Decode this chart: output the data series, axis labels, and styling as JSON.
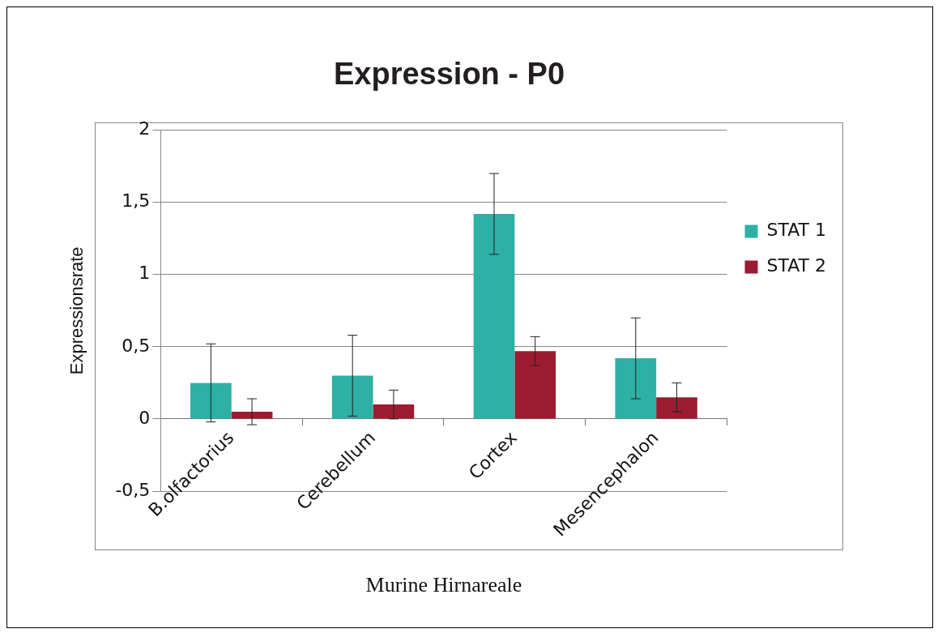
{
  "chart_data": {
    "type": "bar",
    "title": "Expression - P0",
    "xlabel": "Murine Hirnareale",
    "ylabel": "Expressionsrate",
    "categories": [
      "B.olfactorius",
      "Cerebellum",
      "Cortex",
      "Mesencephalon"
    ],
    "series": [
      {
        "name": "STAT 1",
        "color": "#2eb0a5",
        "values": [
          0.25,
          0.3,
          1.42,
          0.42
        ],
        "errors": [
          0.27,
          0.28,
          0.28,
          0.28
        ]
      },
      {
        "name": "STAT 2",
        "color": "#9b1b30",
        "values": [
          0.05,
          0.1,
          0.47,
          0.15
        ],
        "errors": [
          0.09,
          0.1,
          0.1,
          0.1
        ]
      }
    ],
    "ylim": [
      -0.5,
      2
    ],
    "yticks": [
      {
        "value": -0.5,
        "label": "-0,5"
      },
      0,
      {
        "value": 0.5,
        "label": "0,5"
      },
      1,
      {
        "value": 1.5,
        "label": "1,5"
      },
      2
    ],
    "grid": "y",
    "legend": "right"
  }
}
